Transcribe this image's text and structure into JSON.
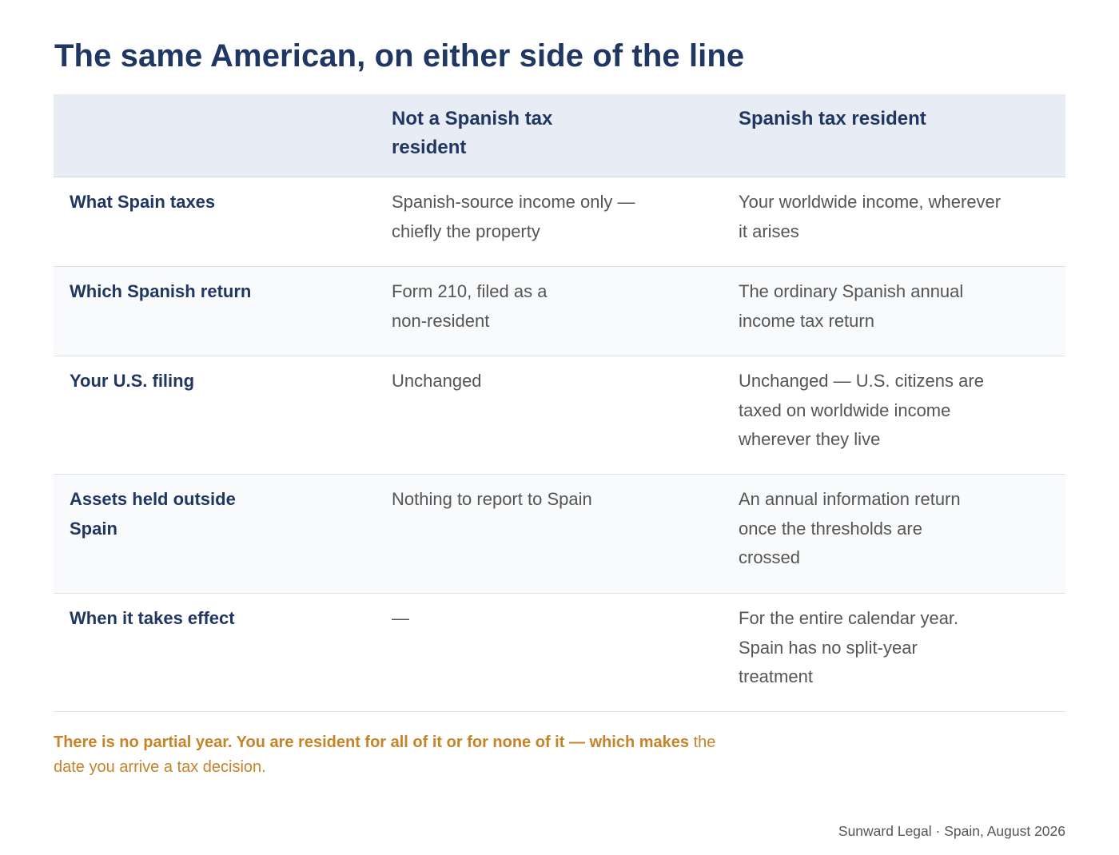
{
  "title": "The same American, on either side of the line",
  "table": {
    "headers": [
      "",
      "Not a Spanish tax resident",
      "Spanish tax resident"
    ],
    "rows": [
      {
        "label": "What Spain taxes",
        "non_resident": "Spanish-source income only — chiefly the property",
        "resident": "Your worldwide income, wherever it arises"
      },
      {
        "label": "Which Spanish return",
        "non_resident": "Form 210, filed as a non-resident",
        "resident": "The ordinary Spanish annual income tax return"
      },
      {
        "label": "Your U.S. filing",
        "non_resident": "Unchanged",
        "resident": "Unchanged — U.S. citizens are taxed on worldwide income wherever they live"
      },
      {
        "label": "Assets held outside Spain",
        "non_resident": "Nothing to report to Spain",
        "resident": "An annual information return once the thresholds are crossed"
      },
      {
        "label": "When it takes effect",
        "non_resident": "—",
        "resident": "For the entire calendar year. Spain has no split-year treatment"
      }
    ]
  },
  "note": {
    "bold": "There is no partial year. You are resident for all of it or for none of it — which makes",
    "regular": "the date you arrive a tax decision."
  },
  "footer": "Sunward Legal · Spain, August 2026"
}
